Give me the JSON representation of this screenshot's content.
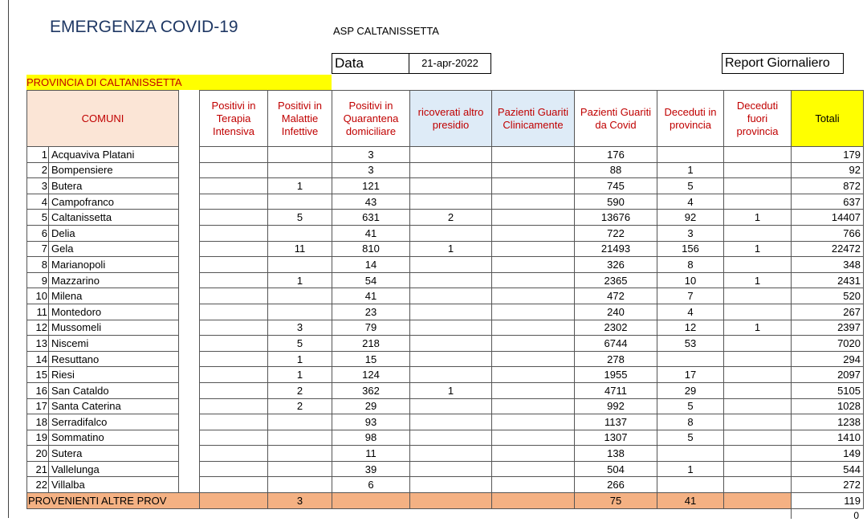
{
  "header": {
    "title": "EMERGENZA COVID-19",
    "org": "ASP CALTANISSETTA",
    "date_label": "Data",
    "date": "21-apr-2022",
    "report": "Report Giornaliero",
    "province": "PROVINCIA DI CALTANISSETTA"
  },
  "table": {
    "columns": [
      "COMUNI",
      "Positivi in Terapia Intensiva",
      "Positivi in Malattie Infettive",
      "Positivi in Quarantena domiciliare",
      "ricoverati altro presidio",
      "Pazienti Guariti Clinicamente",
      "Pazienti Guariti da Covid",
      "Deceduti in provincia",
      "Deceduti fuori provincia",
      "Totali"
    ],
    "rows": [
      [
        1,
        "Acquaviva Platani",
        null,
        null,
        3,
        null,
        null,
        176,
        null,
        null,
        179
      ],
      [
        2,
        "Bompensiere",
        null,
        null,
        3,
        null,
        null,
        88,
        1,
        null,
        92
      ],
      [
        3,
        "Butera",
        null,
        1,
        121,
        null,
        null,
        745,
        5,
        null,
        872
      ],
      [
        4,
        "Campofranco",
        null,
        null,
        43,
        null,
        null,
        590,
        4,
        null,
        637
      ],
      [
        5,
        "Caltanissetta",
        null,
        5,
        631,
        2,
        null,
        13676,
        92,
        1,
        14407
      ],
      [
        6,
        "Delia",
        null,
        null,
        41,
        null,
        null,
        722,
        3,
        null,
        766
      ],
      [
        7,
        "Gela",
        null,
        11,
        810,
        1,
        null,
        21493,
        156,
        1,
        22472
      ],
      [
        8,
        "Marianopoli",
        null,
        null,
        14,
        null,
        null,
        326,
        8,
        null,
        348
      ],
      [
        9,
        "Mazzarino",
        null,
        1,
        54,
        null,
        null,
        2365,
        10,
        1,
        2431
      ],
      [
        10,
        "Milena",
        null,
        null,
        41,
        null,
        null,
        472,
        7,
        null,
        520
      ],
      [
        11,
        "Montedoro",
        null,
        null,
        23,
        null,
        null,
        240,
        4,
        null,
        267
      ],
      [
        12,
        "Mussomeli",
        null,
        3,
        79,
        null,
        null,
        2302,
        12,
        1,
        2397
      ],
      [
        13,
        "Niscemi",
        null,
        5,
        218,
        null,
        null,
        6744,
        53,
        null,
        7020
      ],
      [
        14,
        "Resuttano",
        null,
        1,
        15,
        null,
        null,
        278,
        null,
        null,
        294
      ],
      [
        15,
        "Riesi",
        null,
        1,
        124,
        null,
        null,
        1955,
        17,
        null,
        2097
      ],
      [
        16,
        "San Cataldo",
        null,
        2,
        362,
        1,
        null,
        4711,
        29,
        null,
        5105
      ],
      [
        17,
        "Santa Caterina",
        null,
        2,
        29,
        null,
        null,
        992,
        5,
        null,
        1028
      ],
      [
        18,
        "Serradifalco",
        null,
        null,
        93,
        null,
        null,
        1137,
        8,
        null,
        1238
      ],
      [
        19,
        "Sommatino",
        null,
        null,
        98,
        null,
        null,
        1307,
        5,
        null,
        1410
      ],
      [
        20,
        "Sutera",
        null,
        null,
        11,
        null,
        null,
        138,
        null,
        null,
        149
      ],
      [
        21,
        "Vallelunga",
        null,
        null,
        39,
        null,
        null,
        504,
        1,
        null,
        544
      ],
      [
        22,
        "Villalba",
        null,
        null,
        6,
        null,
        null,
        266,
        null,
        null,
        272
      ]
    ],
    "footer": [
      "PROVENIENTI ALTRE PROV",
      null,
      3,
      null,
      null,
      null,
      75,
      41,
      null,
      119
    ],
    "below_total": 0
  }
}
